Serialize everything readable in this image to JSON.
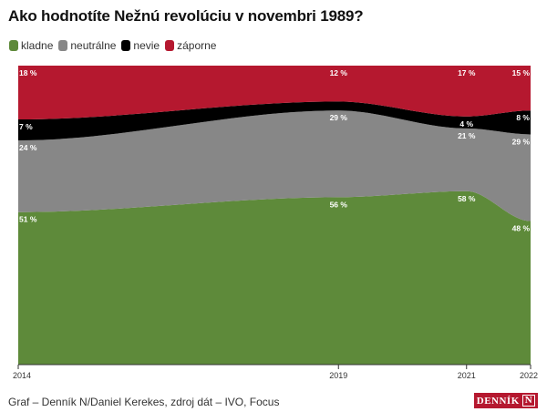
{
  "chart_data": {
    "type": "area",
    "stacked": true,
    "normalized_percent": true,
    "title": "Ako hodnotíte Nežnú revolúciu v novembri 1989?",
    "x": [
      2014,
      2019,
      2021,
      2022
    ],
    "xticks": [
      "2014",
      "2019",
      "2021",
      "2022"
    ],
    "ylim": [
      0,
      100
    ],
    "legend_position": "top-left",
    "series": [
      {
        "name": "kladne",
        "color": "#5e8a3a",
        "values": [
          51,
          56,
          58,
          48
        ],
        "labels": [
          "51 %",
          "56 %",
          "58 %",
          "48 %"
        ]
      },
      {
        "name": "neutrálne",
        "color": "#878787",
        "values": [
          24,
          29,
          21,
          29
        ],
        "labels": [
          "24 %",
          "29 %",
          "21 %",
          "29 %"
        ]
      },
      {
        "name": "nevie",
        "color": "#000000",
        "values": [
          7,
          3,
          4,
          8
        ],
        "labels": [
          "7 %",
          null,
          "4 %",
          "8 %"
        ]
      },
      {
        "name": "záporne",
        "color": "#b5182f",
        "values": [
          18,
          12,
          17,
          15
        ],
        "labels": [
          "18 %",
          "12 %",
          "17 %",
          "15 %"
        ]
      }
    ]
  },
  "footer": {
    "source": "Graf – Denník N/Daniel Kerekes, zdroj dát – IVO, Focus"
  },
  "logo": {
    "text": "DENNÍK",
    "mark": "N"
  }
}
